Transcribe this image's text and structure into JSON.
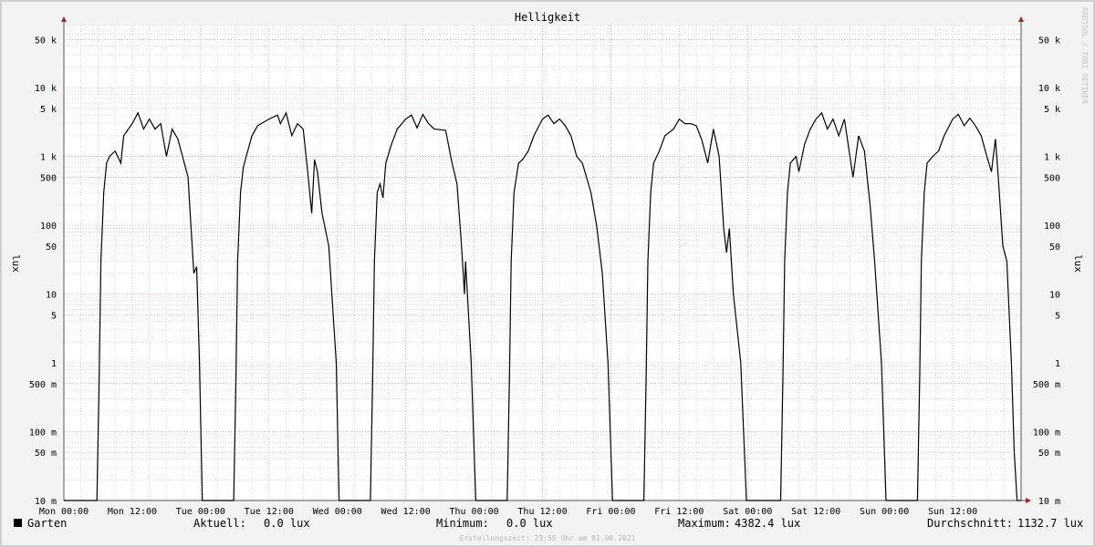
{
  "chart_data": {
    "type": "line",
    "title": "Helligkeit",
    "ylabel": "lux",
    "yscale": "log",
    "ylim": [
      0.01,
      80000
    ],
    "grid": true,
    "x_tick_labels": [
      "Mon 00:00",
      "Mon 12:00",
      "Tue 00:00",
      "Tue 12:00",
      "Wed 00:00",
      "Wed 12:00",
      "Thu 00:00",
      "Thu 12:00",
      "Fri 00:00",
      "Fri 12:00",
      "Sat 00:00",
      "Sat 12:00",
      "Sun 00:00",
      "Sun 12:00"
    ],
    "xlim_hours": [
      0,
      168
    ],
    "y_ticks": [
      {
        "value": 0.01,
        "label": "10 m"
      },
      {
        "value": 0.05,
        "label": "50 m"
      },
      {
        "value": 0.1,
        "label": "100 m"
      },
      {
        "value": 0.5,
        "label": "500 m"
      },
      {
        "value": 1,
        "label": "1"
      },
      {
        "value": 5,
        "label": "5"
      },
      {
        "value": 10,
        "label": "10"
      },
      {
        "value": 50,
        "label": "50"
      },
      {
        "value": 100,
        "label": "100"
      },
      {
        "value": 500,
        "label": "500"
      },
      {
        "value": 1000,
        "label": "1 k"
      },
      {
        "value": 5000,
        "label": "5 k"
      },
      {
        "value": 10000,
        "label": "10 k"
      },
      {
        "value": 50000,
        "label": "50 k"
      }
    ],
    "series": [
      {
        "name": "Garten",
        "color": "#000000",
        "points": [
          [
            0,
            0.01
          ],
          [
            5.8,
            0.01
          ],
          [
            6.2,
            0.6
          ],
          [
            6.5,
            30
          ],
          [
            7,
            300
          ],
          [
            7.5,
            800
          ],
          [
            8,
            1000
          ],
          [
            9,
            1200
          ],
          [
            10,
            800
          ],
          [
            10.5,
            2000
          ],
          [
            12,
            3000
          ],
          [
            13,
            4300
          ],
          [
            14,
            2500
          ],
          [
            15,
            3500
          ],
          [
            16,
            2500
          ],
          [
            17,
            3000
          ],
          [
            18,
            1000
          ],
          [
            19,
            2500
          ],
          [
            20,
            1800
          ],
          [
            21.8,
            500
          ],
          [
            22.3,
            100
          ],
          [
            22.8,
            20
          ],
          [
            23.3,
            25
          ],
          [
            23.8,
            1
          ],
          [
            24.3,
            0.01
          ],
          [
            24.3,
            0.01
          ],
          [
            29.8,
            0.01
          ],
          [
            30.2,
            0.6
          ],
          [
            30.5,
            30
          ],
          [
            31,
            300
          ],
          [
            31.5,
            700
          ],
          [
            32,
            1000
          ],
          [
            33,
            2000
          ],
          [
            34,
            2800
          ],
          [
            36,
            3500
          ],
          [
            37.5,
            4000
          ],
          [
            38,
            3000
          ],
          [
            39,
            4300
          ],
          [
            40,
            2000
          ],
          [
            41,
            3000
          ],
          [
            42,
            2500
          ],
          [
            42.8,
            600
          ],
          [
            43.5,
            150
          ],
          [
            44,
            900
          ],
          [
            44.5,
            600
          ],
          [
            45.3,
            150
          ],
          [
            46.5,
            50
          ],
          [
            47.8,
            1
          ],
          [
            48.3,
            0.01
          ],
          [
            48.3,
            0.01
          ],
          [
            53.8,
            0.01
          ],
          [
            54.2,
            0.6
          ],
          [
            54.5,
            30
          ],
          [
            55,
            300
          ],
          [
            55.5,
            400
          ],
          [
            56,
            250
          ],
          [
            56.5,
            800
          ],
          [
            57.5,
            1500
          ],
          [
            58.5,
            2500
          ],
          [
            60,
            3500
          ],
          [
            61,
            4000
          ],
          [
            62,
            2600
          ],
          [
            63,
            4100
          ],
          [
            64,
            3000
          ],
          [
            65,
            2500
          ],
          [
            67,
            2400
          ],
          [
            68,
            900
          ],
          [
            69,
            400
          ],
          [
            69.8,
            50
          ],
          [
            70.3,
            10
          ],
          [
            70.5,
            30
          ],
          [
            71.5,
            1
          ],
          [
            72.3,
            0.01
          ],
          [
            72.3,
            0.01
          ],
          [
            77.8,
            0.01
          ],
          [
            78.2,
            0.6
          ],
          [
            78.5,
            30
          ],
          [
            79,
            300
          ],
          [
            79.8,
            800
          ],
          [
            80.5,
            900
          ],
          [
            81.5,
            1200
          ],
          [
            82.5,
            2000
          ],
          [
            84,
            3500
          ],
          [
            85,
            4000
          ],
          [
            86,
            3000
          ],
          [
            87,
            3500
          ],
          [
            88,
            2800
          ],
          [
            89,
            2000
          ],
          [
            90,
            1000
          ],
          [
            91,
            800
          ],
          [
            92.5,
            300
          ],
          [
            93.5,
            100
          ],
          [
            94.5,
            20
          ],
          [
            95.5,
            1
          ],
          [
            96.3,
            0.01
          ],
          [
            96.3,
            0.01
          ],
          [
            101.8,
            0.01
          ],
          [
            102.2,
            0.6
          ],
          [
            102.5,
            30
          ],
          [
            103,
            300
          ],
          [
            103.5,
            800
          ],
          [
            104.5,
            1200
          ],
          [
            105.5,
            2000
          ],
          [
            107,
            2500
          ],
          [
            108,
            3500
          ],
          [
            109,
            3000
          ],
          [
            110,
            3000
          ],
          [
            111,
            2800
          ],
          [
            112,
            1700
          ],
          [
            113,
            800
          ],
          [
            114,
            2500
          ],
          [
            115,
            1000
          ],
          [
            115.8,
            90
          ],
          [
            116.3,
            40
          ],
          [
            116.8,
            90
          ],
          [
            117.5,
            10
          ],
          [
            118.8,
            1
          ],
          [
            119.8,
            0.01
          ],
          [
            119.8,
            0.01
          ],
          [
            125.8,
            0.01
          ],
          [
            126.2,
            0.6
          ],
          [
            126.5,
            30
          ],
          [
            127,
            300
          ],
          [
            127.5,
            800
          ],
          [
            128.5,
            1000
          ],
          [
            129,
            600
          ],
          [
            130,
            1500
          ],
          [
            131,
            2500
          ],
          [
            132,
            3500
          ],
          [
            133,
            4300
          ],
          [
            134,
            2500
          ],
          [
            135,
            3500
          ],
          [
            136,
            2000
          ],
          [
            137,
            3500
          ],
          [
            138.5,
            500
          ],
          [
            139.5,
            2000
          ],
          [
            140.5,
            1200
          ],
          [
            141.5,
            200
          ],
          [
            142.3,
            30
          ],
          [
            143.5,
            1
          ],
          [
            144.3,
            0.01
          ],
          [
            144.3,
            0.01
          ],
          [
            149.8,
            0.01
          ],
          [
            150.2,
            0.6
          ],
          [
            150.5,
            30
          ],
          [
            151,
            300
          ],
          [
            151.5,
            800
          ],
          [
            152.5,
            1000
          ],
          [
            153.5,
            1200
          ],
          [
            154.5,
            2000
          ],
          [
            156,
            3500
          ],
          [
            157,
            4100
          ],
          [
            158,
            2800
          ],
          [
            159,
            3600
          ],
          [
            160,
            2800
          ],
          [
            161,
            2000
          ],
          [
            162,
            1000
          ],
          [
            162.8,
            600
          ],
          [
            163.5,
            1800
          ],
          [
            164,
            500
          ],
          [
            164.8,
            50
          ],
          [
            165.5,
            30
          ],
          [
            166.3,
            1
          ],
          [
            166.8,
            0.05
          ],
          [
            167.3,
            0.01
          ],
          [
            168,
            0.01
          ]
        ]
      }
    ],
    "legend": [
      {
        "label": "Garten",
        "color": "#000000",
        "position": "bottom-left"
      }
    ],
    "stats": {
      "current_label": "Aktuell:",
      "current_value": "0.0 lux",
      "min_label": "Minimum:",
      "min_value": "0.0 lux",
      "max_label": "Maximum:",
      "max_value": "4382.4 lux",
      "avg_label": "Durchschnitt:",
      "avg_value": "1132.7 lux"
    },
    "footer": "Erstellungszeit: 23:55 Uhr am 01.08.2021",
    "watermark": "RRDTOOL / TOBI OETIKER"
  },
  "colors": {
    "background": "#f3f3f3",
    "plot_background": "#ffffff",
    "major_grid": "#e0a0a8",
    "minor_grid": "#c8c8c8",
    "axis_arrow": "#b02020",
    "line": "#000000"
  }
}
